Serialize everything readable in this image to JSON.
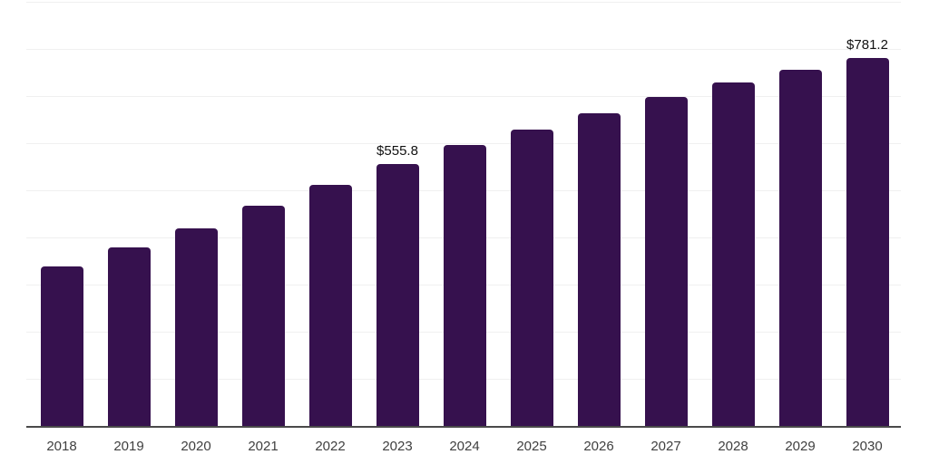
{
  "chart_data": {
    "type": "bar",
    "title": "",
    "xlabel": "",
    "ylabel": "",
    "categories": [
      "2018",
      "2019",
      "2020",
      "2021",
      "2022",
      "2023",
      "2024",
      "2025",
      "2026",
      "2027",
      "2028",
      "2029",
      "2030"
    ],
    "values": [
      338.0,
      379.0,
      420.5,
      467.0,
      512.5,
      555.8,
      597.5,
      630.0,
      664.5,
      698.0,
      729.5,
      757.0,
      781.2
    ],
    "data_labels": [
      {
        "index": 5,
        "category": "2023",
        "value": 555.8,
        "text": "$555.8"
      },
      {
        "index": 12,
        "category": "2030",
        "value": 781.2,
        "text": "$781.2"
      }
    ],
    "ylim": [
      0,
      900
    ],
    "y_gridlines": [
      100,
      200,
      300,
      400,
      500,
      600,
      700,
      800,
      900
    ],
    "grid": "horizontal-only",
    "legend": "none"
  },
  "colors": {
    "background": "#ffffff",
    "bar": "#36114E",
    "gridline": "#f0f0f0",
    "axis_line": "#4a4a4a",
    "tick_label": "#404040",
    "data_label": "#111111"
  }
}
